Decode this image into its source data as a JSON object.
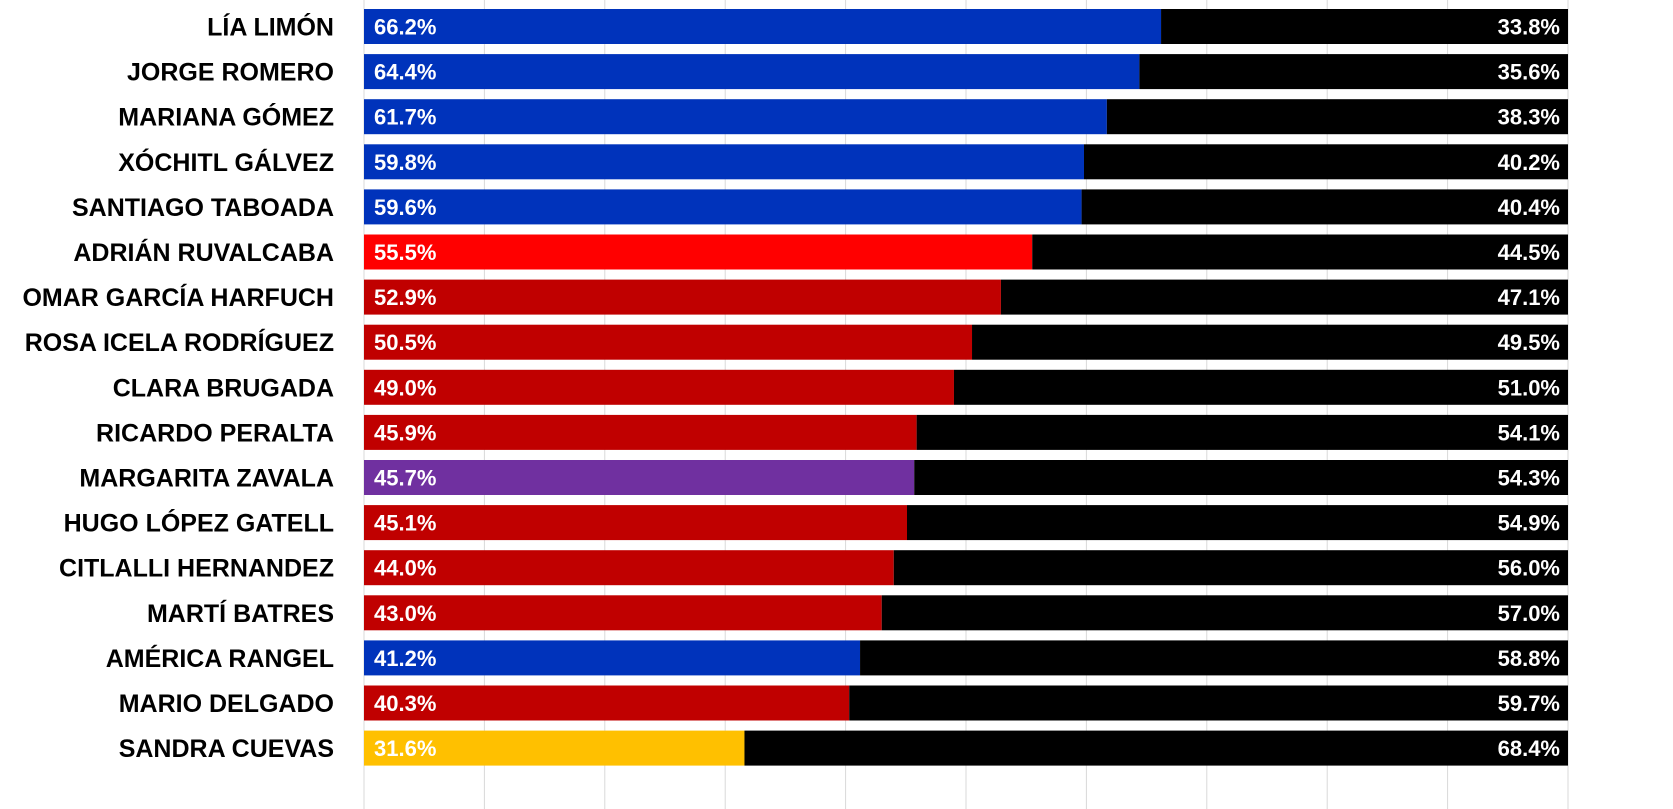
{
  "chart_data": {
    "type": "bar",
    "orientation": "horizontal",
    "stacked": true,
    "xlim": [
      0,
      100
    ],
    "grid": true,
    "categories": [
      "LÍA LIMÓN",
      "JORGE ROMERO",
      "MARIANA GÓMEZ",
      "XÓCHITL GÁLVEZ",
      "SANTIAGO TABOADA",
      "ADRIÁN RUVALCABA",
      "OMAR GARCÍA HARFUCH",
      "ROSA ICELA RODRÍGUEZ",
      "CLARA BRUGADA",
      "RICARDO PERALTA",
      "MARGARITA ZAVALA",
      "HUGO LÓPEZ GATELL",
      "CITLALLI HERNANDEZ",
      "MARTÍ BATRES",
      "AMÉRICA RANGEL",
      "MARIO DELGADO",
      "SANDRA CUEVAS"
    ],
    "series": [
      {
        "values": [
          66.2,
          64.4,
          61.7,
          59.8,
          59.6,
          55.5,
          52.9,
          50.5,
          49.0,
          45.9,
          45.7,
          45.1,
          44.0,
          43.0,
          41.2,
          40.3,
          31.6
        ],
        "labels": [
          "66.2%",
          "64.4%",
          "61.7%",
          "59.8%",
          "59.6%",
          "55.5%",
          "52.9%",
          "50.5%",
          "49.0%",
          "45.9%",
          "45.7%",
          "45.1%",
          "44.0%",
          "43.0%",
          "41.2%",
          "40.3%",
          "31.6%"
        ],
        "colors": [
          "#0033bb",
          "#0033bb",
          "#0033bb",
          "#0033bb",
          "#0033bb",
          "#ff0000",
          "#c00000",
          "#c00000",
          "#c00000",
          "#c00000",
          "#7030a0",
          "#c00000",
          "#c00000",
          "#c00000",
          "#0033bb",
          "#c00000",
          "#ffc000"
        ]
      },
      {
        "values": [
          33.8,
          35.6,
          38.3,
          40.2,
          40.4,
          44.5,
          47.1,
          49.5,
          51.0,
          54.1,
          54.3,
          54.9,
          56.0,
          57.0,
          58.8,
          59.7,
          68.4
        ],
        "labels": [
          "33.8%",
          "35.6%",
          "38.3%",
          "40.2%",
          "40.4%",
          "44.5%",
          "47.1%",
          "49.5%",
          "51.0%",
          "54.1%",
          "54.3%",
          "54.9%",
          "56.0%",
          "57.0%",
          "58.8%",
          "59.7%",
          "68.4%"
        ],
        "color": "#000000"
      }
    ]
  }
}
